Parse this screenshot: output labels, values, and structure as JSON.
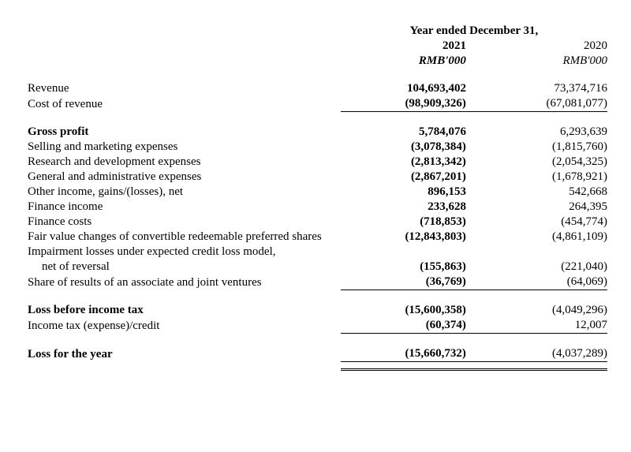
{
  "header": {
    "super": "Year ended December 31,",
    "y2021": "2021",
    "y2020": "2020",
    "unit2021": "RMB'000",
    "unit2020": "RMB'000"
  },
  "rows": {
    "revenue": {
      "label": "Revenue",
      "v21": "104,693,402",
      "v20": "73,374,716"
    },
    "cost": {
      "label": "Cost of revenue",
      "v21": "(98,909,326)",
      "v20": "(67,081,077)"
    },
    "gross": {
      "label": "Gross profit",
      "v21": "5,784,076",
      "v20": "6,293,639"
    },
    "selling": {
      "label": "Selling and marketing expenses",
      "v21": "(3,078,384)",
      "v20": "(1,815,760)"
    },
    "rnd": {
      "label": "Research and development expenses",
      "v21": "(2,813,342)",
      "v20": "(2,054,325)"
    },
    "ga": {
      "label": "General and administrative expenses",
      "v21": "(2,867,201)",
      "v20": "(1,678,921)"
    },
    "other": {
      "label": "Other income, gains/(losses), net",
      "v21": "896,153",
      "v20": "542,668"
    },
    "finInc": {
      "label": "Finance income",
      "v21": "233,628",
      "v20": "264,395"
    },
    "finCost": {
      "label": "Finance costs",
      "v21": "(718,853)",
      "v20": "(454,774)"
    },
    "fv": {
      "label": "Fair value changes of convertible redeemable preferred shares",
      "v21": "(12,843,803)",
      "v20": "(4,861,109)"
    },
    "impair1": {
      "label": "Impairment losses under expected credit loss model,"
    },
    "impair2": {
      "label": "net of reversal",
      "v21": "(155,863)",
      "v20": "(221,040)"
    },
    "share": {
      "label": "Share of results of an associate and joint ventures",
      "v21": "(36,769)",
      "v20": "(64,069)"
    },
    "lbt": {
      "label": "Loss before income tax",
      "v21": "(15,600,358)",
      "v20": "(4,049,296)"
    },
    "tax": {
      "label": "Income tax (expense)/credit",
      "v21": "(60,374)",
      "v20": "12,007"
    },
    "loss": {
      "label": "Loss for the year",
      "v21": "(15,660,732)",
      "v20": "(4,037,289)"
    }
  }
}
